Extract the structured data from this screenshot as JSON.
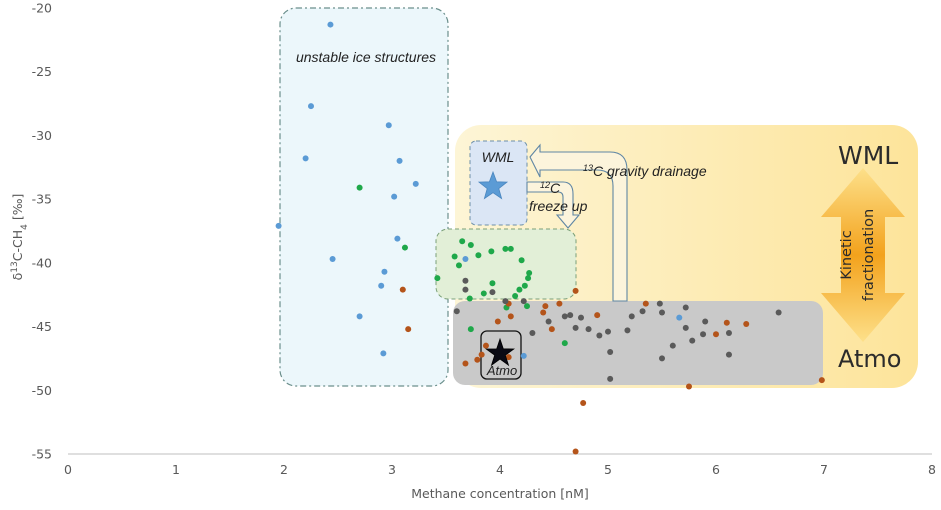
{
  "chart_data": {
    "type": "scatter",
    "xlabel": "Methane concentration [nM]",
    "ylabel": {
      "base": "δ",
      "sup1": "13",
      "mid": "C-CH",
      "sub": "4",
      "end": " [‰]"
    },
    "xlim": [
      0,
      8
    ],
    "ylim": [
      -55,
      -20
    ],
    "xticks": [
      "0",
      "1",
      "2",
      "3",
      "4",
      "5",
      "6",
      "7",
      "8"
    ],
    "yticks": [
      "-20",
      "-25",
      "-30",
      "-35",
      "-40",
      "-45",
      "-50",
      "-55"
    ],
    "grid": false,
    "legend": "none",
    "colors": {
      "blue": "#5b9bd5",
      "green": "#1fa84a",
      "brown": "#b4541a",
      "gray": "#5a5a5a"
    },
    "series": [
      {
        "color": "blue",
        "points": [
          [
            2.43,
            -21.3
          ],
          [
            2.25,
            -27.7
          ],
          [
            2.97,
            -29.2
          ],
          [
            2.2,
            -31.8
          ],
          [
            3.07,
            -32
          ],
          [
            3.22,
            -33.8
          ],
          [
            3.02,
            -34.8
          ],
          [
            1.95,
            -37.1
          ],
          [
            3.05,
            -38.1
          ],
          [
            2.93,
            -40.7
          ],
          [
            2.45,
            -39.7
          ],
          [
            2.9,
            -41.8
          ],
          [
            2.7,
            -44.2
          ],
          [
            2.92,
            -47.1
          ],
          [
            3.68,
            -39.7
          ],
          [
            5.66,
            -44.3
          ],
          [
            4.22,
            -47.3
          ]
        ]
      },
      {
        "color": "green",
        "points": [
          [
            2.7,
            -34.1
          ],
          [
            3.12,
            -38.8
          ],
          [
            3.73,
            -38.6
          ],
          [
            3.65,
            -38.3
          ],
          [
            3.58,
            -39.5
          ],
          [
            3.62,
            -40.2
          ],
          [
            3.8,
            -39.4
          ],
          [
            3.92,
            -39.1
          ],
          [
            4.05,
            -38.9
          ],
          [
            4.1,
            -38.9
          ],
          [
            4.2,
            -39.8
          ],
          [
            4.27,
            -40.8
          ],
          [
            4.26,
            -41.2
          ],
          [
            4.23,
            -41.8
          ],
          [
            4.18,
            -42.1
          ],
          [
            4.14,
            -42.6
          ],
          [
            3.93,
            -41.6
          ],
          [
            3.85,
            -42.4
          ],
          [
            3.72,
            -42.8
          ],
          [
            3.42,
            -41.2
          ],
          [
            3.73,
            -45.2
          ],
          [
            4.06,
            -43.5
          ],
          [
            4.6,
            -46.3
          ],
          [
            4.25,
            -43.4
          ]
        ]
      },
      {
        "color": "brown",
        "points": [
          [
            3.1,
            -42.1
          ],
          [
            3.15,
            -45.2
          ],
          [
            3.68,
            -47.9
          ],
          [
            3.79,
            -47.6
          ],
          [
            3.83,
            -47.2
          ],
          [
            3.87,
            -46.5
          ],
          [
            4.08,
            -47.4
          ],
          [
            3.98,
            -44.6
          ],
          [
            4.08,
            -43.2
          ],
          [
            4.1,
            -44.2
          ],
          [
            4.4,
            -43.9
          ],
          [
            4.55,
            -43.2
          ],
          [
            4.48,
            -45.2
          ],
          [
            4.7,
            -42.2
          ],
          [
            4.77,
            -51.0
          ],
          [
            4.7,
            -54.8
          ],
          [
            5.35,
            -43.2
          ],
          [
            5.75,
            -49.7
          ],
          [
            6.0,
            -45.6
          ],
          [
            6.1,
            -44.7
          ],
          [
            6.28,
            -44.8
          ],
          [
            6.98,
            -49.2
          ],
          [
            4.9,
            -44.1
          ],
          [
            4.42,
            -43.4
          ]
        ]
      },
      {
        "color": "gray",
        "points": [
          [
            3.68,
            -41.4
          ],
          [
            3.68,
            -42.1
          ],
          [
            3.93,
            -42.3
          ],
          [
            4.05,
            -43.0
          ],
          [
            4.22,
            -43.0
          ],
          [
            3.6,
            -43.8
          ],
          [
            4.3,
            -45.5
          ],
          [
            4.45,
            -44.6
          ],
          [
            4.6,
            -44.2
          ],
          [
            4.65,
            -44.1
          ],
          [
            4.75,
            -44.3
          ],
          [
            4.82,
            -45.2
          ],
          [
            4.92,
            -45.7
          ],
          [
            5.02,
            -47.0
          ],
          [
            5.02,
            -49.1
          ],
          [
            5.0,
            -45.4
          ],
          [
            5.18,
            -45.3
          ],
          [
            5.22,
            -44.2
          ],
          [
            5.32,
            -43.8
          ],
          [
            5.48,
            -43.2
          ],
          [
            5.5,
            -43.9
          ],
          [
            5.5,
            -47.5
          ],
          [
            5.6,
            -46.5
          ],
          [
            5.72,
            -43.5
          ],
          [
            5.72,
            -45.1
          ],
          [
            5.88,
            -45.6
          ],
          [
            5.9,
            -44.6
          ],
          [
            5.78,
            -46.1
          ],
          [
            6.12,
            -45.5
          ],
          [
            6.12,
            -47.2
          ],
          [
            6.58,
            -43.9
          ],
          [
            4.7,
            -45.1
          ]
        ]
      }
    ]
  },
  "annotations": {
    "unstable": "unstable ice structures",
    "wml_box": "WML",
    "atmo_box": "Atmo",
    "wml_big": "WML",
    "atmo_big": "Atmo",
    "kinetic_line1": "Kinetic",
    "kinetic_line2": "fractionation",
    "gravity_sup": "13",
    "gravity_text": "C gravity drainage",
    "freeze_sup": "12",
    "freeze_c": "C",
    "freeze_text": "freeze up"
  }
}
